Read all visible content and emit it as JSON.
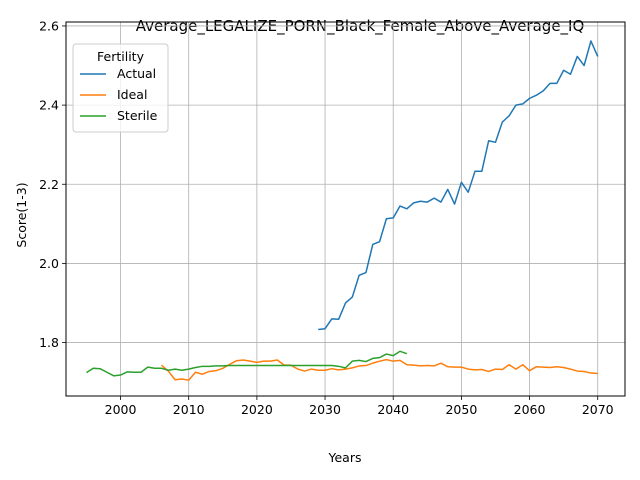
{
  "chart_data": {
    "type": "line",
    "title": "Average_LEGALIZE_PORN_Black_Female_Above_Average_IQ",
    "xlabel": "Years",
    "ylabel": "Score(1-3)",
    "xlim": [
      1992,
      2074
    ],
    "ylim": [
      1.665,
      2.61
    ],
    "xticks": [
      2000,
      2010,
      2020,
      2030,
      2040,
      2050,
      2060,
      2070
    ],
    "yticks": [
      1.8,
      2.0,
      2.2,
      2.4,
      2.6
    ],
    "grid": true,
    "legend": {
      "title": "Fertility",
      "placement": "top-left"
    },
    "series": [
      {
        "name": "Actual",
        "color": "#1f77b4",
        "x": [
          2029,
          2030,
          2031,
          2032,
          2033,
          2034,
          2035,
          2036,
          2037,
          2038,
          2039,
          2040,
          2041,
          2042,
          2043,
          2044,
          2045,
          2046,
          2047,
          2048,
          2049,
          2050,
          2051,
          2052,
          2053,
          2054,
          2055,
          2056,
          2057,
          2058,
          2059,
          2060,
          2061,
          2062,
          2063,
          2064,
          2065,
          2066,
          2067,
          2068,
          2069,
          2070
        ],
        "y": [
          1.833,
          1.835,
          1.86,
          1.859,
          1.9,
          1.915,
          1.97,
          1.977,
          2.048,
          2.055,
          2.113,
          2.115,
          2.145,
          2.138,
          2.153,
          2.157,
          2.155,
          2.165,
          2.155,
          2.187,
          2.15,
          2.205,
          2.18,
          2.233,
          2.233,
          2.31,
          2.306,
          2.357,
          2.373,
          2.4,
          2.403,
          2.417,
          2.425,
          2.436,
          2.455,
          2.455,
          2.488,
          2.478,
          2.523,
          2.5,
          2.562,
          2.523
        ]
      },
      {
        "name": "Ideal",
        "color": "#ff7f0e",
        "x": [
          2006,
          2007,
          2008,
          2009,
          2010,
          2011,
          2012,
          2013,
          2014,
          2015,
          2016,
          2017,
          2018,
          2019,
          2020,
          2021,
          2022,
          2023,
          2024,
          2025,
          2026,
          2027,
          2028,
          2029,
          2030,
          2031,
          2032,
          2033,
          2034,
          2035,
          2036,
          2037,
          2038,
          2039,
          2040,
          2041,
          2042,
          2043,
          2044,
          2045,
          2046,
          2047,
          2048,
          2049,
          2050,
          2051,
          2052,
          2053,
          2054,
          2055,
          2056,
          2057,
          2058,
          2059,
          2060,
          2061,
          2062,
          2063,
          2064,
          2065,
          2066,
          2067,
          2068,
          2069,
          2070
        ],
        "y": [
          1.743,
          1.728,
          1.706,
          1.708,
          1.705,
          1.725,
          1.72,
          1.727,
          1.729,
          1.735,
          1.745,
          1.754,
          1.756,
          1.753,
          1.75,
          1.753,
          1.753,
          1.756,
          1.743,
          1.743,
          1.733,
          1.728,
          1.733,
          1.73,
          1.73,
          1.734,
          1.731,
          1.733,
          1.736,
          1.741,
          1.742,
          1.748,
          1.753,
          1.757,
          1.753,
          1.755,
          1.744,
          1.743,
          1.741,
          1.742,
          1.741,
          1.748,
          1.739,
          1.738,
          1.738,
          1.733,
          1.731,
          1.732,
          1.727,
          1.733,
          1.732,
          1.744,
          1.733,
          1.744,
          1.729,
          1.739,
          1.738,
          1.737,
          1.739,
          1.737,
          1.733,
          1.728,
          1.727,
          1.723,
          1.722
        ]
      },
      {
        "name": "Sterile",
        "color": "#2ca02c",
        "x": [
          1995,
          1996,
          1997,
          1998,
          1999,
          2000,
          2001,
          2002,
          2003,
          2004,
          2005,
          2006,
          2007,
          2008,
          2009,
          2010,
          2011,
          2012,
          2013,
          2014,
          2015,
          2016,
          2017,
          2018,
          2019,
          2020,
          2021,
          2022,
          2023,
          2024,
          2025,
          2026,
          2027,
          2028,
          2029,
          2030,
          2031,
          2032,
          2033,
          2034,
          2035,
          2036,
          2037,
          2038,
          2039,
          2040,
          2041,
          2042
        ],
        "y": [
          1.724,
          1.735,
          1.734,
          1.725,
          1.716,
          1.718,
          1.726,
          1.725,
          1.725,
          1.738,
          1.735,
          1.735,
          1.73,
          1.733,
          1.73,
          1.733,
          1.737,
          1.74,
          1.74,
          1.741,
          1.741,
          1.742,
          1.742,
          1.742,
          1.742,
          1.742,
          1.742,
          1.742,
          1.742,
          1.742,
          1.742,
          1.742,
          1.742,
          1.742,
          1.742,
          1.742,
          1.742,
          1.74,
          1.736,
          1.753,
          1.755,
          1.752,
          1.76,
          1.762,
          1.771,
          1.767,
          1.778,
          1.772
        ]
      }
    ]
  }
}
